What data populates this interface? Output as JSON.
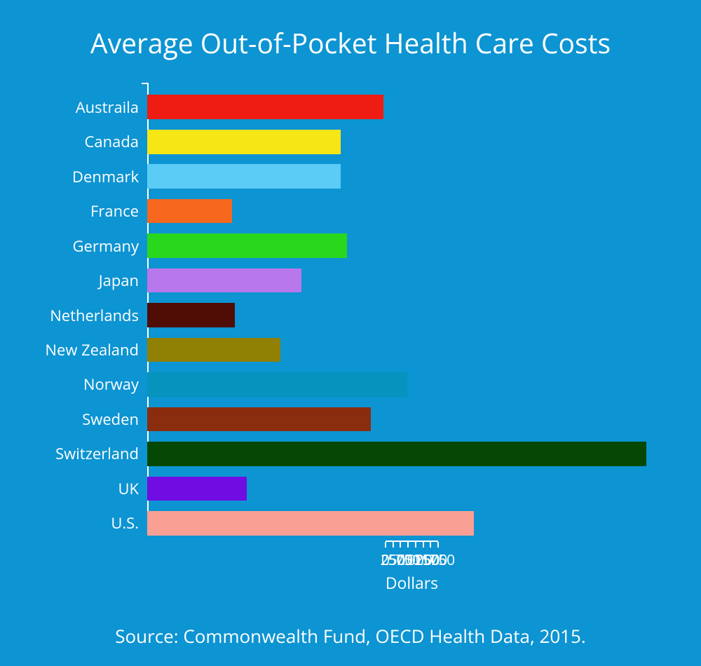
{
  "chart": {
    "type": "bar-horizontal",
    "title": "Average Out-of-Pocket Health Care Costs",
    "title_fontsize": 39,
    "title_color": "#ffffff",
    "background_color": "#0d94d2",
    "text_color": "#ffffff",
    "axis_color": "#ffffff",
    "categories": [
      "Austraila",
      "Canada",
      "Denmark",
      "France",
      "Germany",
      "Japan",
      "Netherlands",
      "New Zealand",
      "Norway",
      "Sweden",
      "Switzerland",
      "UK",
      "U.S."
    ],
    "values": [
      780,
      640,
      640,
      280,
      660,
      510,
      290,
      440,
      860,
      740,
      1650,
      330,
      1080
    ],
    "bar_colors": [
      "#ee1c12",
      "#f7e616",
      "#5bccf6",
      "#f6681e",
      "#29d71d",
      "#b877eb",
      "#4f0d05",
      "#908003",
      "#0693bd",
      "#8a2d0e",
      "#044804",
      "#700de2",
      "#fa9f94"
    ],
    "xlabel": "Dollars",
    "xlabel_fontsize": 23,
    "label_fontsize": 22,
    "xlim": [
      0,
      1750
    ],
    "xtick_step": 250,
    "xticks": [
      0,
      250,
      500,
      750,
      1000,
      1250,
      1500,
      1750
    ],
    "bar_height_ratio": 0.7,
    "source": "Source: Commonwealth Fund, OECD Health Data, 2015.",
    "source_fontsize": 26
  }
}
